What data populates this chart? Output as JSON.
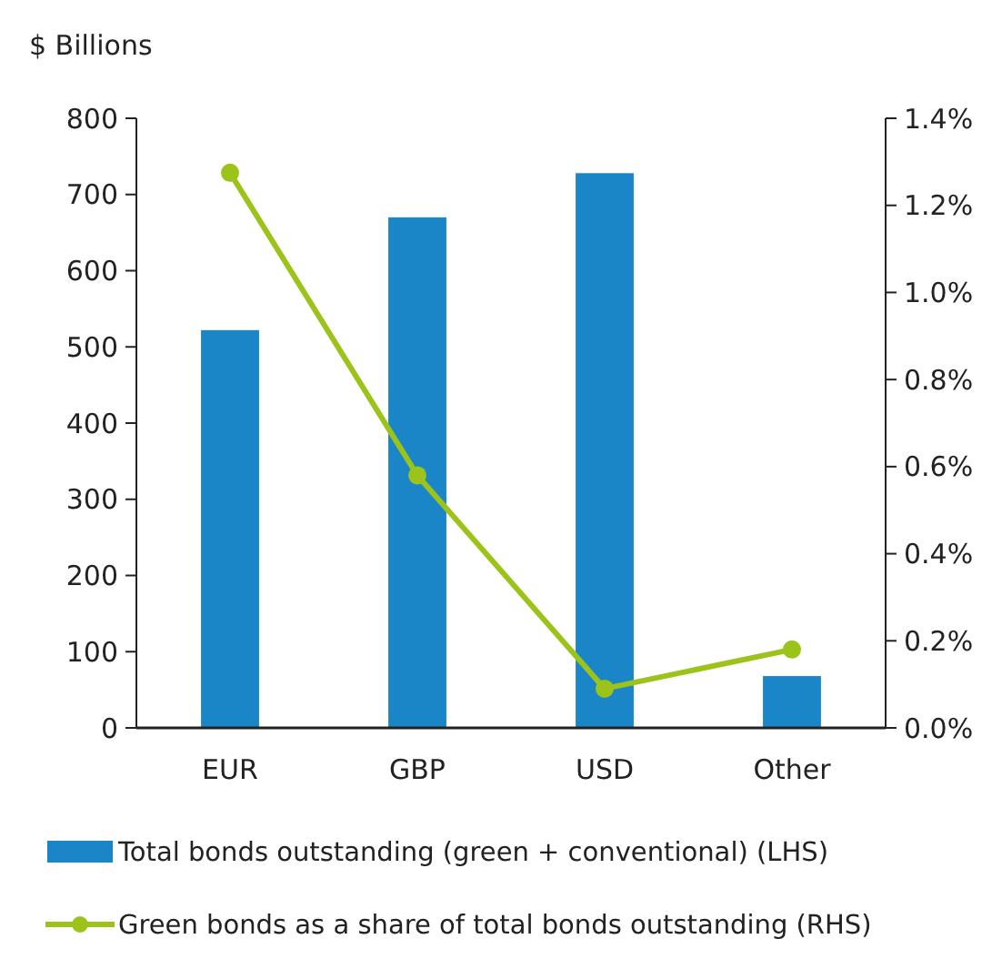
{
  "chart_data": {
    "type": "bar",
    "ylabel": "$ Billions",
    "categories": [
      "EUR",
      "GBP",
      "USD",
      "Other"
    ],
    "series": [
      {
        "name": "Total bonds outstanding (green + conventional) (LHS)",
        "color": "#1a86c8",
        "values": [
          522,
          670,
          728,
          68
        ]
      },
      {
        "name": "Green bonds as a share of total bonds outstanding (RHS)",
        "type": "line",
        "axis": "y2",
        "color": "#9bc31a",
        "marker": "circle",
        "values": [
          1.275,
          0.58,
          0.09,
          0.18
        ]
      }
    ],
    "ylim": [
      0,
      800
    ],
    "yticks": [
      0,
      100,
      200,
      300,
      400,
      500,
      600,
      700,
      800
    ],
    "y2lim": [
      0,
      1.4
    ],
    "y2ticks": [
      {
        "value": 0,
        "label": "0.0%"
      },
      {
        "value": 0.2,
        "label": "0.2%"
      },
      {
        "value": 0.4,
        "label": "0.4%"
      },
      {
        "value": 0.6,
        "label": "0.6%"
      },
      {
        "value": 0.8,
        "label": "0.8%"
      },
      {
        "value": 1.0,
        "label": "1.0%"
      },
      {
        "value": 1.2,
        "label": "1.2%"
      },
      {
        "value": 1.4,
        "label": "1.4%"
      }
    ],
    "legend": "bottom",
    "grid": false
  }
}
